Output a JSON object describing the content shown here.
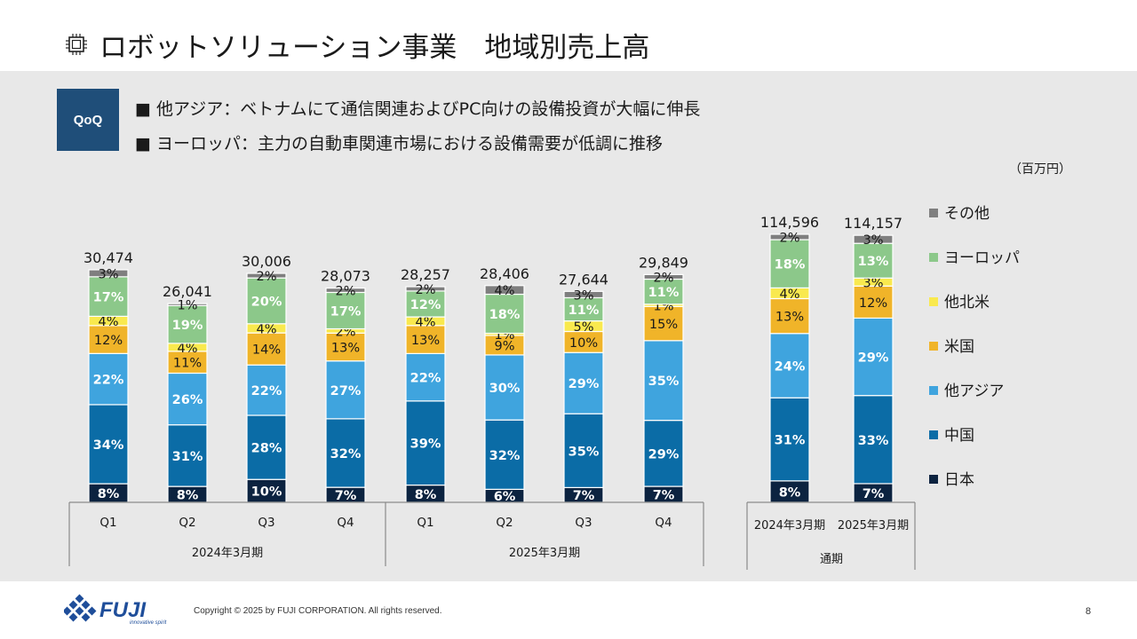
{
  "slide": {
    "title": "ロボットソリューション事業　地域別売上高",
    "badge": "QoQ",
    "bullets": [
      "■ 他アジア：ベトナムにて通信関連およびPC向けの設備投資が大幅に伸長",
      "■ ヨーロッパ：主力の自動車関連市場における設備需要が低調に推移"
    ],
    "unit": "（百万円）",
    "footer": {
      "copyright": "Copyright © 2025 by FUJI CORPORATION. All rights reserved.",
      "page": "8",
      "logo_text": "FUJI",
      "logo_tagline": "innovative spirit"
    }
  },
  "chart_data": {
    "type": "bar",
    "stacked": true,
    "normalized": true,
    "series_names": [
      "日本",
      "中国",
      "他アジア",
      "米国",
      "他北米",
      "ヨーロッパ",
      "その他"
    ],
    "legend_order": [
      "その他",
      "ヨーロッパ",
      "他北米",
      "米国",
      "他アジア",
      "中国",
      "日本"
    ],
    "colors": {
      "日本": "#0c2340",
      "中国": "#0b6ca6",
      "他アジア": "#3fa4de",
      "米国": "#f0b429",
      "他北米": "#f9e94e",
      "ヨーロッパ": "#8cc88a",
      "その他": "#7f7f7f"
    },
    "bars": [
      {
        "category": "Q1",
        "period": "2024年3月期",
        "total": "30,474",
        "shares": [
          8,
          34,
          22,
          12,
          4,
          17,
          3
        ]
      },
      {
        "category": "Q2",
        "period": "2024年3月期",
        "total": "26,041",
        "shares": [
          8,
          31,
          26,
          11,
          4,
          19,
          1
        ]
      },
      {
        "category": "Q3",
        "period": "2024年3月期",
        "total": "30,006",
        "shares": [
          10,
          28,
          22,
          14,
          4,
          20,
          2
        ]
      },
      {
        "category": "Q4",
        "period": "2024年3月期",
        "total": "28,073",
        "shares": [
          7,
          32,
          27,
          13,
          2,
          17,
          2
        ]
      },
      {
        "category": "Q1",
        "period": "2025年3月期",
        "total": "28,257",
        "shares": [
          8,
          39,
          22,
          13,
          4,
          12,
          2
        ]
      },
      {
        "category": "Q2",
        "period": "2025年3月期",
        "total": "28,406",
        "shares": [
          6,
          32,
          30,
          9,
          1,
          18,
          4
        ]
      },
      {
        "category": "Q3",
        "period": "2025年3月期",
        "total": "27,644",
        "shares": [
          7,
          35,
          29,
          10,
          5,
          11,
          3
        ]
      },
      {
        "category": "Q4",
        "period": "2025年3月期",
        "total": "29,849",
        "shares": [
          7,
          29,
          35,
          15,
          1,
          11,
          2
        ]
      },
      {
        "category": "2024年3月期",
        "period": "通期",
        "total": "114,596",
        "shares": [
          8,
          31,
          24,
          13,
          4,
          18,
          2
        ]
      },
      {
        "category": "2025年3月期",
        "period": "通期",
        "total": "114,157",
        "shares": [
          7,
          33,
          29,
          12,
          3,
          13,
          3
        ]
      }
    ],
    "groups": [
      "2024年3月期",
      "2025年3月期",
      "通期"
    ]
  }
}
